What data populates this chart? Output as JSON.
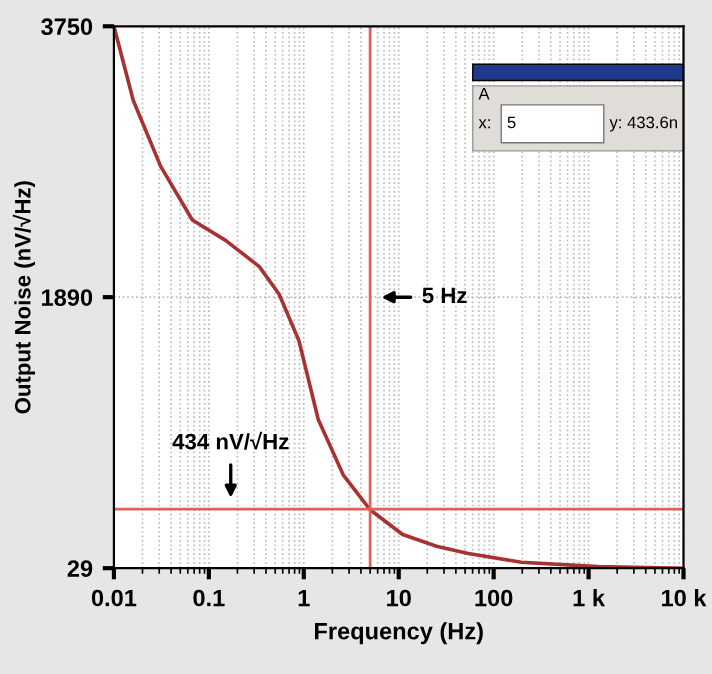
{
  "chart_data": {
    "type": "line",
    "xlabel": "Frequency (Hz)",
    "ylabel": "Output Noise (nV/√Hz)",
    "log": "x",
    "xlim": [
      0.01,
      10000
    ],
    "xticks": [
      0.01,
      0.1,
      1,
      10,
      100,
      {
        "value": 1000,
        "label": "1 k"
      },
      {
        "value": 10000,
        "label": "10 k"
      }
    ],
    "ylim": [
      29,
      3750
    ],
    "yticks": [
      29,
      1890,
      3750
    ],
    "grid": true,
    "legend": false,
    "series": [
      {
        "color": "#a83232",
        "x": [
          0.01,
          0.016,
          0.031,
          0.067,
          0.15,
          0.34,
          0.55,
          0.89,
          1.42,
          2.6,
          5,
          11,
          25,
          54,
          195,
          1260,
          10000
        ],
        "values": [
          3750,
          3240,
          2790,
          2420,
          2280,
          2100,
          1910,
          1590,
          1050,
          670,
          430,
          260,
          180,
          130,
          70,
          40,
          29
        ]
      }
    ],
    "ref_lines": [
      {
        "axis": "x",
        "value": 5,
        "label": "5 Hz",
        "color": "#e06060"
      },
      {
        "axis": "y",
        "value": 434,
        "label": "434 nV/√Hz",
        "color": "#e06060"
      }
    ],
    "annotations": [
      "A",
      "x:",
      "5",
      "y: 433.6n"
    ]
  }
}
